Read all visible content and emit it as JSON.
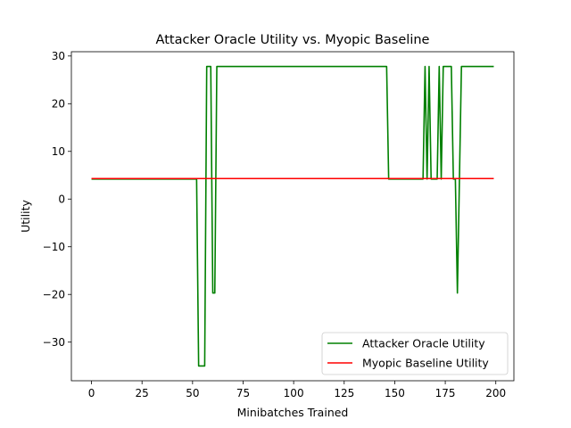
{
  "chart_data": {
    "type": "line",
    "title": "Attacker Oracle Utility vs. Myopic Baseline",
    "xlabel": "Minibatches Trained",
    "ylabel": "Utility",
    "xlim": [
      -9.95,
      208.95
    ],
    "ylim": [
      -38.1,
      30.9
    ],
    "xticks": [
      0,
      25,
      50,
      75,
      100,
      125,
      150,
      175,
      200
    ],
    "yticks": [
      -30,
      -20,
      -10,
      0,
      10,
      20,
      30
    ],
    "xtick_labels": [
      "0",
      "25",
      "50",
      "75",
      "100",
      "125",
      "150",
      "175",
      "200"
    ],
    "ytick_labels": [
      "−30",
      "−20",
      "−10",
      "0",
      "10",
      "20",
      "30"
    ],
    "grid": false,
    "legend_position": "lower-right",
    "series": [
      {
        "name": "Attacker Oracle Utility",
        "color": "#008000",
        "points": [
          [
            0,
            4.2
          ],
          [
            52,
            4.2
          ],
          [
            53,
            -35
          ],
          [
            56,
            -35
          ],
          [
            57,
            27.8
          ],
          [
            59,
            27.8
          ],
          [
            60,
            -19.7
          ],
          [
            61,
            -19.7
          ],
          [
            62,
            27.8
          ],
          [
            146,
            27.8
          ],
          [
            147,
            4.2
          ],
          [
            164,
            4.2
          ],
          [
            165,
            27.8
          ],
          [
            166,
            4.2
          ],
          [
            167,
            27.8
          ],
          [
            168,
            4.2
          ],
          [
            171,
            4.2
          ],
          [
            172,
            27.8
          ],
          [
            173,
            4.2
          ],
          [
            174,
            27.8
          ],
          [
            178,
            27.8
          ],
          [
            179,
            4.2
          ],
          [
            180,
            4.2
          ],
          [
            181,
            -19.7
          ],
          [
            183,
            27.8
          ],
          [
            199,
            27.8
          ]
        ]
      },
      {
        "name": "Myopic Baseline Utility",
        "color": "#ff0000",
        "points": [
          [
            0,
            4.3
          ],
          [
            199,
            4.3
          ]
        ]
      }
    ]
  }
}
